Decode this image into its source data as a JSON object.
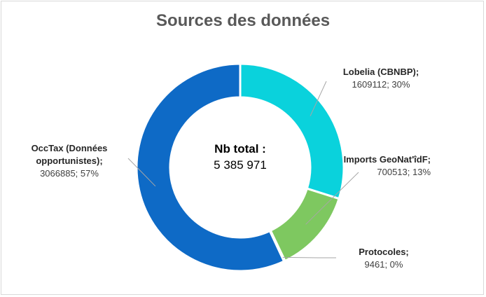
{
  "chart_data": {
    "type": "pie",
    "title": "Sources des données",
    "center_label": {
      "line1": "Nb total :",
      "line2": "5 385 971"
    },
    "slices": [
      {
        "name": "Lobelia (CBNBP);",
        "value": 1609112,
        "value_text": "1609112; 30%",
        "color": "#0ad2dc"
      },
      {
        "name": "Imports GeoNat'îdF;",
        "value": 700513,
        "value_text": "700513; 13%",
        "color": "#7ec860"
      },
      {
        "name": "Protocoles;",
        "value": 9461,
        "value_text": "9461; 0%",
        "color": "#2e8b3e"
      },
      {
        "name": "OccTax (Données opportunistes);",
        "value": 3066885,
        "value_text": "3066885; 57%",
        "color": "#0e6ac6"
      }
    ],
    "start_angle_deg": 0,
    "legend": "none"
  }
}
